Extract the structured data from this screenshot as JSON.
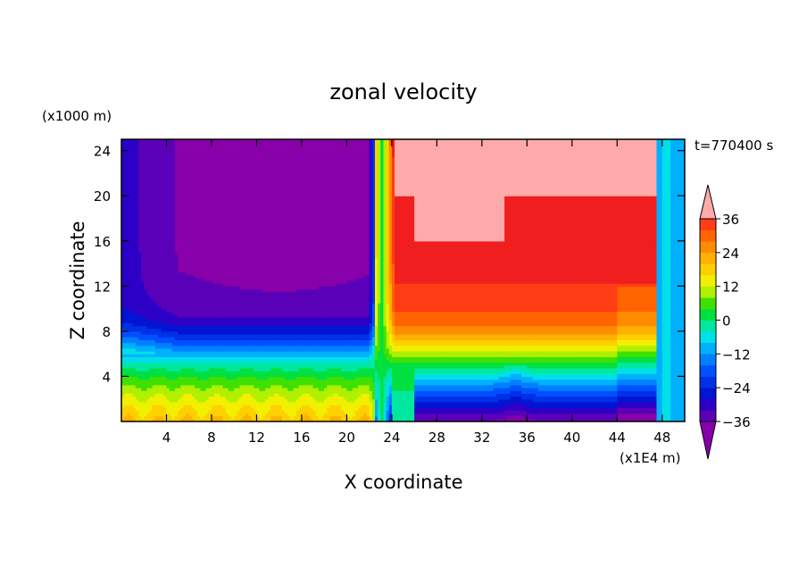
{
  "chart_data": {
    "type": "heatmap",
    "title": "zonal velocity",
    "xlabel": "X coordinate",
    "ylabel": "Z coordinate",
    "x_units": "(x1E4 m)",
    "y_units": "(x1000 m)",
    "time_label": "t=770400 s",
    "xlim": [
      0,
      50
    ],
    "ylim": [
      0,
      25
    ],
    "xticks": [
      4,
      8,
      12,
      16,
      20,
      24,
      28,
      32,
      36,
      40,
      44,
      48
    ],
    "yticks": [
      4,
      8,
      12,
      16,
      20,
      24
    ],
    "colorbar": {
      "tick_values": [
        36,
        24,
        12,
        0,
        -12,
        -24,
        -36
      ],
      "tick_labels": [
        "36",
        "24",
        "12",
        "0",
        "−12",
        "−24",
        "−36"
      ],
      "levels": [
        -40,
        -36,
        -32,
        -28,
        -24,
        -20,
        -16,
        -12,
        -8,
        -4,
        0,
        4,
        8,
        12,
        16,
        20,
        24,
        28,
        32,
        36,
        40
      ],
      "colors": [
        "#8800aa",
        "#5a00b8",
        "#2c00c6",
        "#0014d4",
        "#0030e8",
        "#0050ff",
        "#0080ff",
        "#00b0ff",
        "#00e0e8",
        "#00e8a0",
        "#00e040",
        "#40e000",
        "#b0f000",
        "#f0f000",
        "#ffd000",
        "#ffb000",
        "#ff8c00",
        "#ff6400",
        "#ff3c14",
        "#f01e1e",
        "#ffaaaa"
      ]
    }
  }
}
